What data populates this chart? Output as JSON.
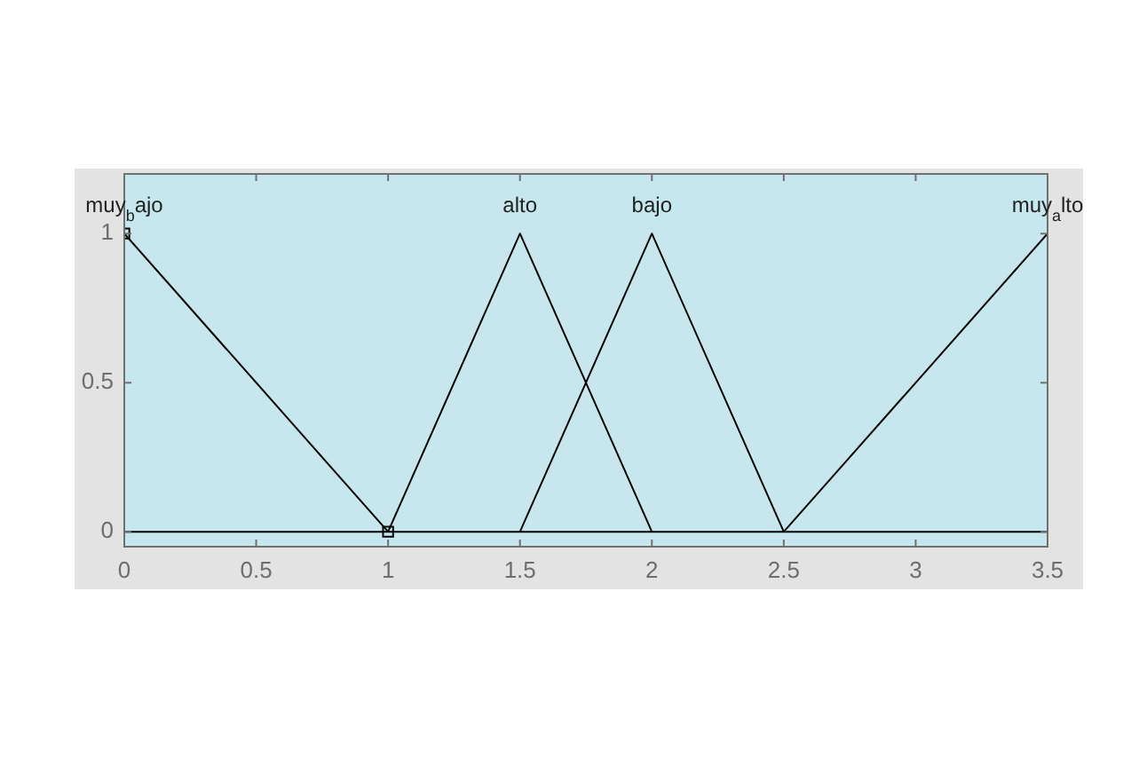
{
  "chart_data": {
    "type": "line",
    "xlim": [
      0,
      3.5
    ],
    "ylim": [
      -0.05,
      1.2
    ],
    "xticks": [
      0,
      0.5,
      1,
      1.5,
      2,
      2.5,
      3,
      3.5
    ],
    "yticks": [
      0,
      0.5,
      1
    ],
    "grid": false,
    "legend": false,
    "marker": "none",
    "line_style": "solid",
    "series": [
      {
        "name": "muy$_{b}$ajo",
        "color": "#000000",
        "x": [
          0,
          1
        ],
        "values": [
          1,
          0
        ]
      },
      {
        "name": "alto",
        "color": "#000000",
        "x": [
          1,
          1.5,
          2
        ],
        "values": [
          0,
          1,
          0
        ]
      },
      {
        "name": "bajo",
        "color": "#000000",
        "x": [
          1.5,
          2,
          2.5
        ],
        "values": [
          0,
          1,
          0
        ]
      },
      {
        "name": "muy$_{a}$lto",
        "color": "#000000",
        "x": [
          2.5,
          3.5
        ],
        "values": [
          0,
          1
        ]
      },
      {
        "color": "#000000",
        "x": [
          0,
          3.5
        ],
        "values": [
          0,
          0
        ]
      },
      {
        "type": "scatter",
        "marker": "square",
        "color": "#000000",
        "x": [
          0,
          1
        ],
        "values": [
          1,
          0
        ]
      }
    ]
  }
}
